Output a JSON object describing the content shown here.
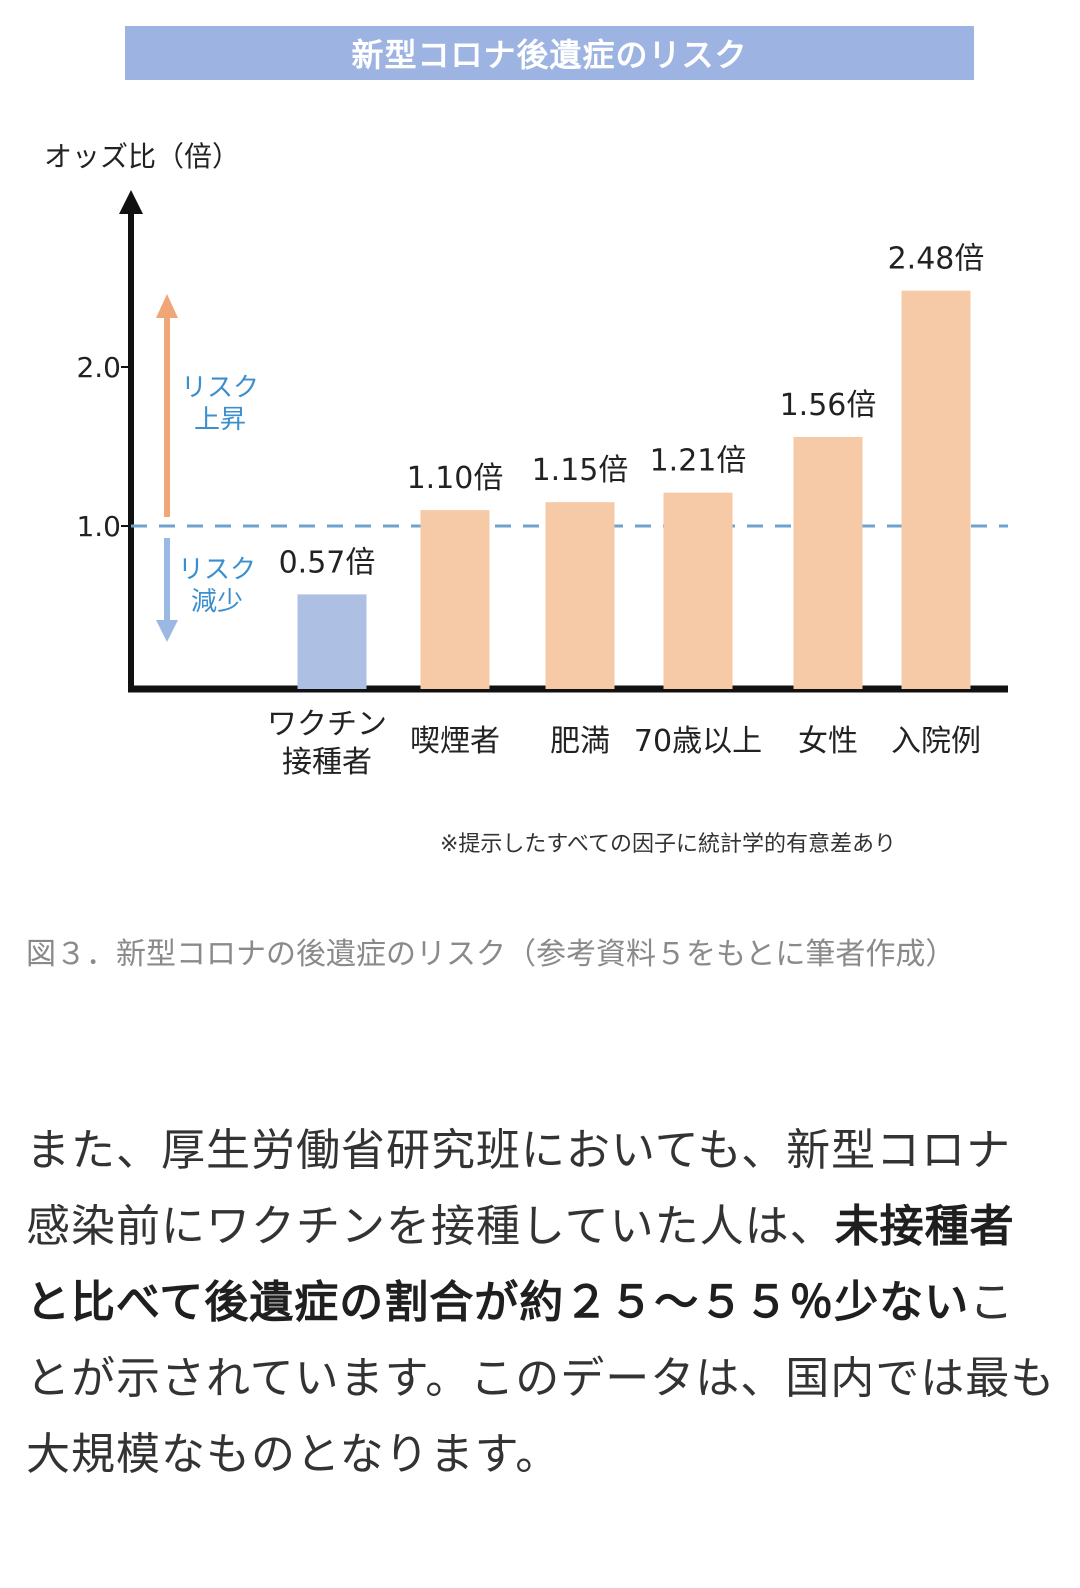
{
  "banner_title": "新型コロナ後遺症のリスク",
  "colors": {
    "banner": "#9db4e2",
    "bar_orange": "#f6c9a7",
    "bar_blue": "#adc0e4",
    "risk_label": "#3b8fcf",
    "arrow_up": "#f0a677",
    "arrow_down": "#9bb8e3",
    "reference_line": "#6fa3cf"
  },
  "chart_data": {
    "type": "bar",
    "title": "新型コロナ後遺症のリスク",
    "ylabel": "オッズ比（倍）",
    "xlabel": "",
    "ylim": [
      0,
      2.6
    ],
    "yticks": [
      {
        "value": 1.0,
        "label": "1.0"
      },
      {
        "value": 2.0,
        "label": "2.0"
      }
    ],
    "reference_line": 1.0,
    "grid": false,
    "categories": [
      "ワクチン接種者",
      "喫煙者",
      "肥満",
      "70歳以上",
      "女性",
      "入院例"
    ],
    "category_lines": [
      [
        "ワクチン",
        "接種者"
      ],
      [
        "喫煙者"
      ],
      [
        "肥満"
      ],
      [
        "70歳以上"
      ],
      [
        "女性"
      ],
      [
        "入院例"
      ]
    ],
    "values": [
      0.57,
      1.1,
      1.15,
      1.21,
      1.56,
      2.48
    ],
    "value_labels": [
      "0.57倍",
      "1.10倍",
      "1.15倍",
      "1.21倍",
      "1.56倍",
      "2.48倍"
    ],
    "bar_colors": [
      "blue",
      "orange",
      "orange",
      "orange",
      "orange",
      "orange"
    ],
    "annotations": {
      "up": [
        "リスク",
        "上昇"
      ],
      "down": [
        "リスク",
        "減少"
      ]
    }
  },
  "footnote": "※提示したすべての因子に統計学的有意差あり",
  "caption": "図３．新型コロナの後遺症のリスク（参考資料５をもとに筆者作成）",
  "body": {
    "p1": "また、厚生労働省研究班においても、新型コロナ感染前にワクチンを接種していた人は、",
    "bold": "未接種者と比べて後遺症の割合が約２５～５５％少ない",
    "p2": "ことが示されています。このデータは、国内では最も大規模なものとなります。"
  }
}
